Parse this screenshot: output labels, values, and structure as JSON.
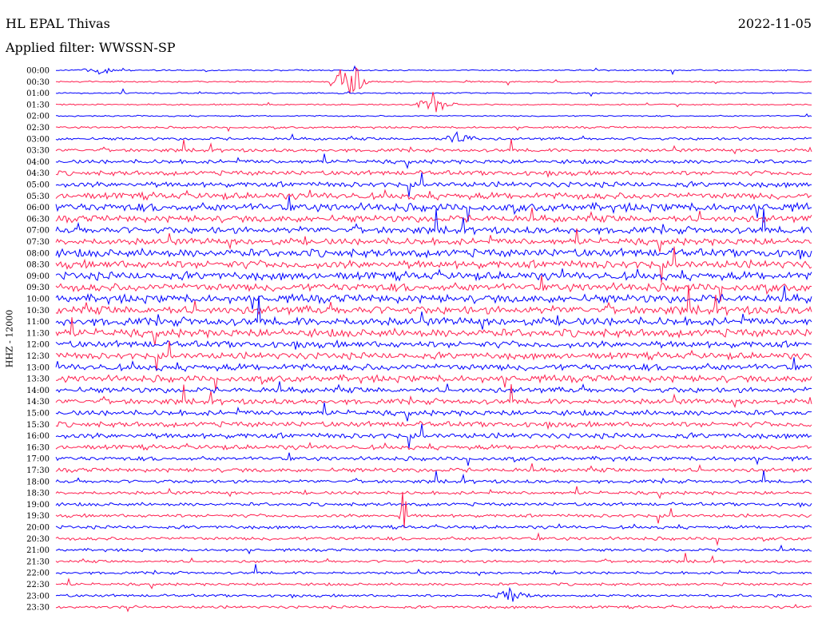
{
  "header": {
    "station": "HL EPAL Thivas",
    "date": "2022-11-05",
    "filter": "Applied filter: WWSSN-SP"
  },
  "chart_data": {
    "type": "line",
    "ylabel": "HHZ - 12000",
    "colors": [
      "#0000ff",
      "#ff2050"
    ],
    "trace_labels": [
      "00:00",
      "00:30",
      "01:00",
      "01:30",
      "02:00",
      "02:30",
      "03:00",
      "03:30",
      "04:00",
      "04:30",
      "05:00",
      "05:30",
      "06:00",
      "06:30",
      "07:00",
      "07:30",
      "08:00",
      "08:30",
      "09:00",
      "09:30",
      "10:00",
      "10:30",
      "11:00",
      "11:30",
      "12:00",
      "12:30",
      "13:00",
      "13:30",
      "14:00",
      "14:30",
      "15:00",
      "15:30",
      "16:00",
      "16:30",
      "17:00",
      "17:30",
      "18:00",
      "18:30",
      "19:00",
      "19:30",
      "20:00",
      "20:30",
      "21:00",
      "21:30",
      "22:00",
      "22:30",
      "23:00",
      "23:30"
    ],
    "trace_noise_level": [
      1,
      1,
      1,
      1,
      1,
      1.5,
      2,
      2.5,
      3,
      3.5,
      4,
      5,
      6,
      5,
      5,
      5,
      6,
      6,
      6,
      6,
      6,
      6,
      6,
      6,
      5,
      5,
      5,
      5,
      4,
      4,
      4,
      4,
      4,
      3.5,
      3,
      3,
      2.5,
      2.5,
      2.5,
      2.5,
      2.5,
      2.5,
      2,
      2,
      2,
      2,
      2,
      2
    ],
    "events": [
      {
        "trace": 1,
        "minute": 11.6,
        "amplitude": 50,
        "duration": 0.8
      },
      {
        "trace": 3,
        "minute": 15.0,
        "amplitude": 18,
        "duration": 1.0
      },
      {
        "trace": 6,
        "minute": 16.0,
        "amplitude": 16,
        "duration": 0.8
      },
      {
        "trace": 46,
        "minute": 18.0,
        "amplitude": 14,
        "duration": 1.0
      },
      {
        "trace": 0,
        "minute": 1.7,
        "amplitude": 8,
        "duration": 1.0
      },
      {
        "trace": 39,
        "minute": 13.8,
        "amplitude": 60,
        "duration": 0.2
      }
    ]
  }
}
